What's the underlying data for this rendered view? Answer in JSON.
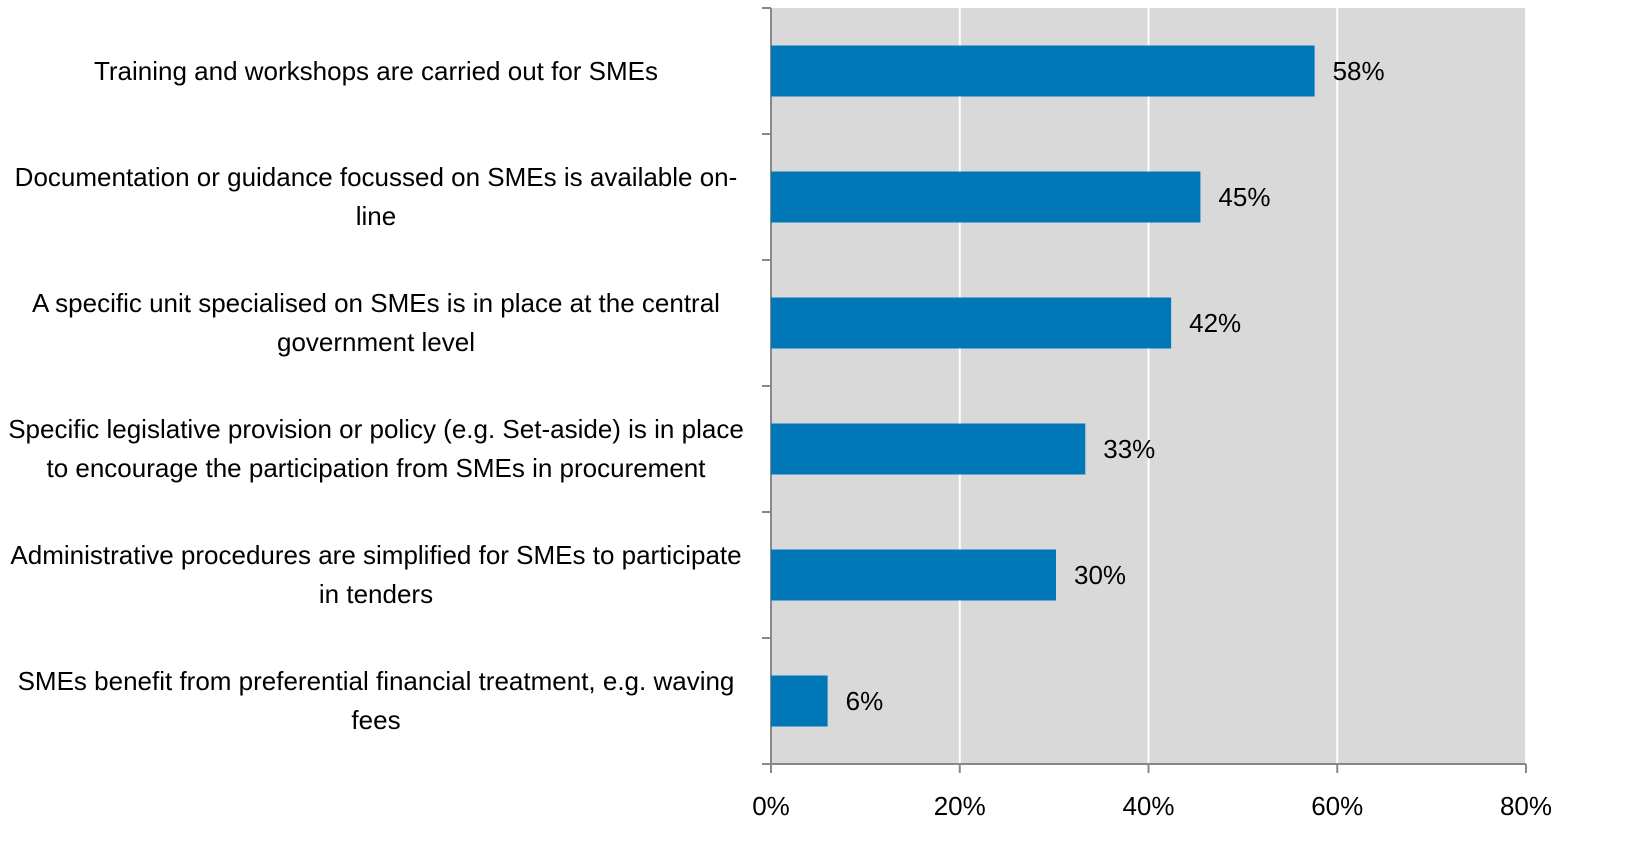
{
  "chart_data": {
    "type": "bar",
    "orientation": "horizontal",
    "categories": [
      "Training and workshops are carried out for SMEs",
      "Documentation or guidance focussed on SMEs is available on-line",
      "A specific unit specialised on SMEs is in place at the central government level",
      "Specific legislative provision or policy (e.g. Set-aside) is in place to encourage the participation from SMEs in procurement",
      "Administrative procedures are simplified for SMEs to participate in tenders",
      "SMEs benefit from preferential financial treatment, e.g. waving fees"
    ],
    "values": [
      57.6,
      45.5,
      42.4,
      33.3,
      30.2,
      6.0
    ],
    "value_labels": [
      "58%",
      "45%",
      "42%",
      "33%",
      "30%",
      "6%"
    ],
    "color": "#0077b6",
    "xlim": [
      0,
      80
    ],
    "xticks": [
      {
        "value": 0,
        "label": "0%"
      },
      {
        "value": 20,
        "label": "20%"
      },
      {
        "value": 40,
        "label": "40%"
      },
      {
        "value": 60,
        "label": "60%"
      },
      {
        "value": 80,
        "label": "80%"
      }
    ],
    "grid": true
  }
}
